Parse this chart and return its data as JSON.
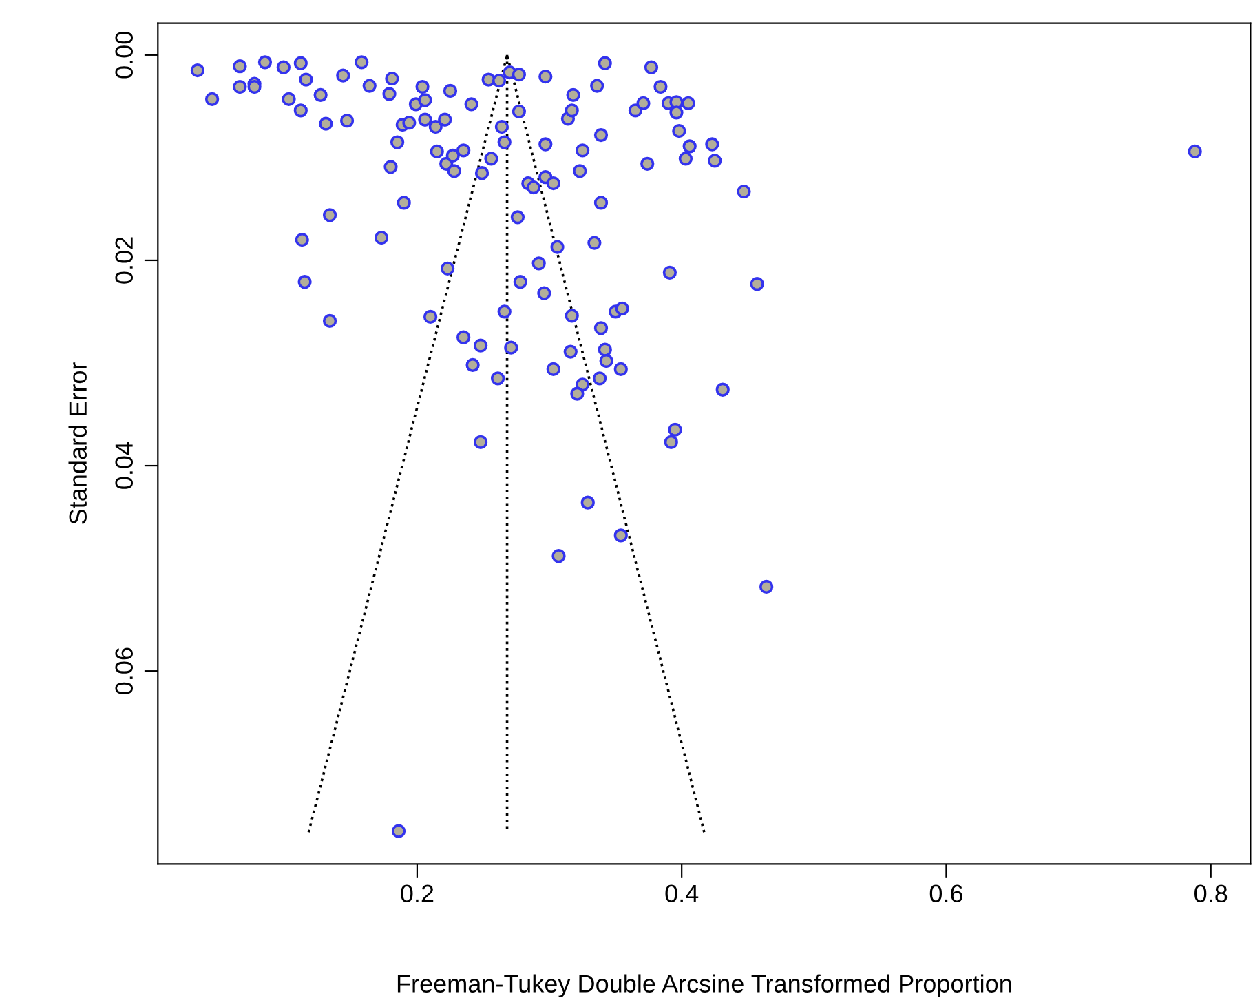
{
  "chart_data": {
    "type": "scatter",
    "xlabel": "Freeman-Tukey Double Arcsine Transformed Proportion",
    "ylabel": "Standard Error",
    "xlim": [
      0.004,
      0.83
    ],
    "ylim": [
      0.0788,
      -0.0031
    ],
    "xticks": [
      0.2,
      0.4,
      0.6,
      0.8
    ],
    "yticks": [
      {
        "value": 0,
        "label": "0.00"
      },
      0.02,
      0.04,
      0.06
    ],
    "grid": false,
    "marker": "circle",
    "series": [
      {
        "color": "#3333ee",
        "x": [
          0.034,
          0.045,
          0.066,
          0.066,
          0.077,
          0.077,
          0.085,
          0.099,
          0.112,
          0.116,
          0.103,
          0.112,
          0.127,
          0.144,
          0.158,
          0.164,
          0.181,
          0.179,
          0.204,
          0.199,
          0.206,
          0.225,
          0.241,
          0.254,
          0.262,
          0.264,
          0.266,
          0.131,
          0.147,
          0.189,
          0.194,
          0.206,
          0.214,
          0.221,
          0.185,
          0.18,
          0.215,
          0.222,
          0.227,
          0.228,
          0.235,
          0.256,
          0.249,
          0.19,
          0.134,
          0.113,
          0.173,
          0.115,
          0.223,
          0.134,
          0.21,
          0.266,
          0.235,
          0.27,
          0.277,
          0.297,
          0.277,
          0.297,
          0.325,
          0.323,
          0.284,
          0.288,
          0.297,
          0.303,
          0.314,
          0.317,
          0.318,
          0.336,
          0.342,
          0.339,
          0.339,
          0.276,
          0.306,
          0.334,
          0.292,
          0.278,
          0.296,
          0.317,
          0.35,
          0.355,
          0.339,
          0.365,
          0.371,
          0.377,
          0.384,
          0.39,
          0.396,
          0.405,
          0.396,
          0.398,
          0.406,
          0.403,
          0.423,
          0.425,
          0.374,
          0.447,
          0.391,
          0.457,
          0.248,
          0.271,
          0.242,
          0.261,
          0.303,
          0.316,
          0.342,
          0.343,
          0.354,
          0.338,
          0.325,
          0.321,
          0.431,
          0.248,
          0.395,
          0.392,
          0.329,
          0.354,
          0.307,
          0.464,
          0.186,
          0.788
        ],
        "values": [
          0.0015,
          0.0043,
          0.0011,
          0.0031,
          0.0028,
          0.0031,
          0.0007,
          0.0012,
          0.0008,
          0.0024,
          0.0043,
          0.0054,
          0.0039,
          0.002,
          0.0007,
          0.003,
          0.0023,
          0.0038,
          0.0031,
          0.0048,
          0.0044,
          0.0035,
          0.0048,
          0.0024,
          0.0025,
          0.007,
          0.0085,
          0.0067,
          0.0064,
          0.0068,
          0.0066,
          0.0063,
          0.007,
          0.0063,
          0.0085,
          0.0109,
          0.0094,
          0.0106,
          0.0098,
          0.0113,
          0.0093,
          0.0101,
          0.0115,
          0.0144,
          0.0156,
          0.018,
          0.0178,
          0.0221,
          0.0208,
          0.0259,
          0.0255,
          0.025,
          0.0275,
          0.0017,
          0.0019,
          0.0021,
          0.0055,
          0.0087,
          0.0093,
          0.0113,
          0.0125,
          0.0129,
          0.0119,
          0.0125,
          0.0062,
          0.0054,
          0.0039,
          0.003,
          0.0008,
          0.0078,
          0.0144,
          0.0158,
          0.0187,
          0.0183,
          0.0203,
          0.0221,
          0.0232,
          0.0254,
          0.025,
          0.0247,
          0.0266,
          0.0054,
          0.0047,
          0.0012,
          0.0031,
          0.0047,
          0.0046,
          0.0047,
          0.0056,
          0.0074,
          0.0089,
          0.0101,
          0.0087,
          0.0103,
          0.0106,
          0.0133,
          0.0212,
          0.0223,
          0.0283,
          0.0285,
          0.0302,
          0.0315,
          0.0306,
          0.0289,
          0.0287,
          0.0298,
          0.0306,
          0.0315,
          0.0321,
          0.033,
          0.0326,
          0.0377,
          0.0365,
          0.0377,
          0.0436,
          0.0468,
          0.0488,
          0.0518,
          0.0756,
          0.0094
        ]
      },
      {
        "type": "line",
        "color": "#000000",
        "line_style": "dotted",
        "marker": "none",
        "x": [
          0.118,
          0.268,
          0.417
        ],
        "values": [
          0.0757,
          0,
          0.0757
        ]
      },
      {
        "type": "line",
        "color": "#000000",
        "line_style": "dotted",
        "marker": "none",
        "x": [
          0.268,
          0.268
        ],
        "values": [
          0,
          0.0757
        ]
      }
    ]
  }
}
